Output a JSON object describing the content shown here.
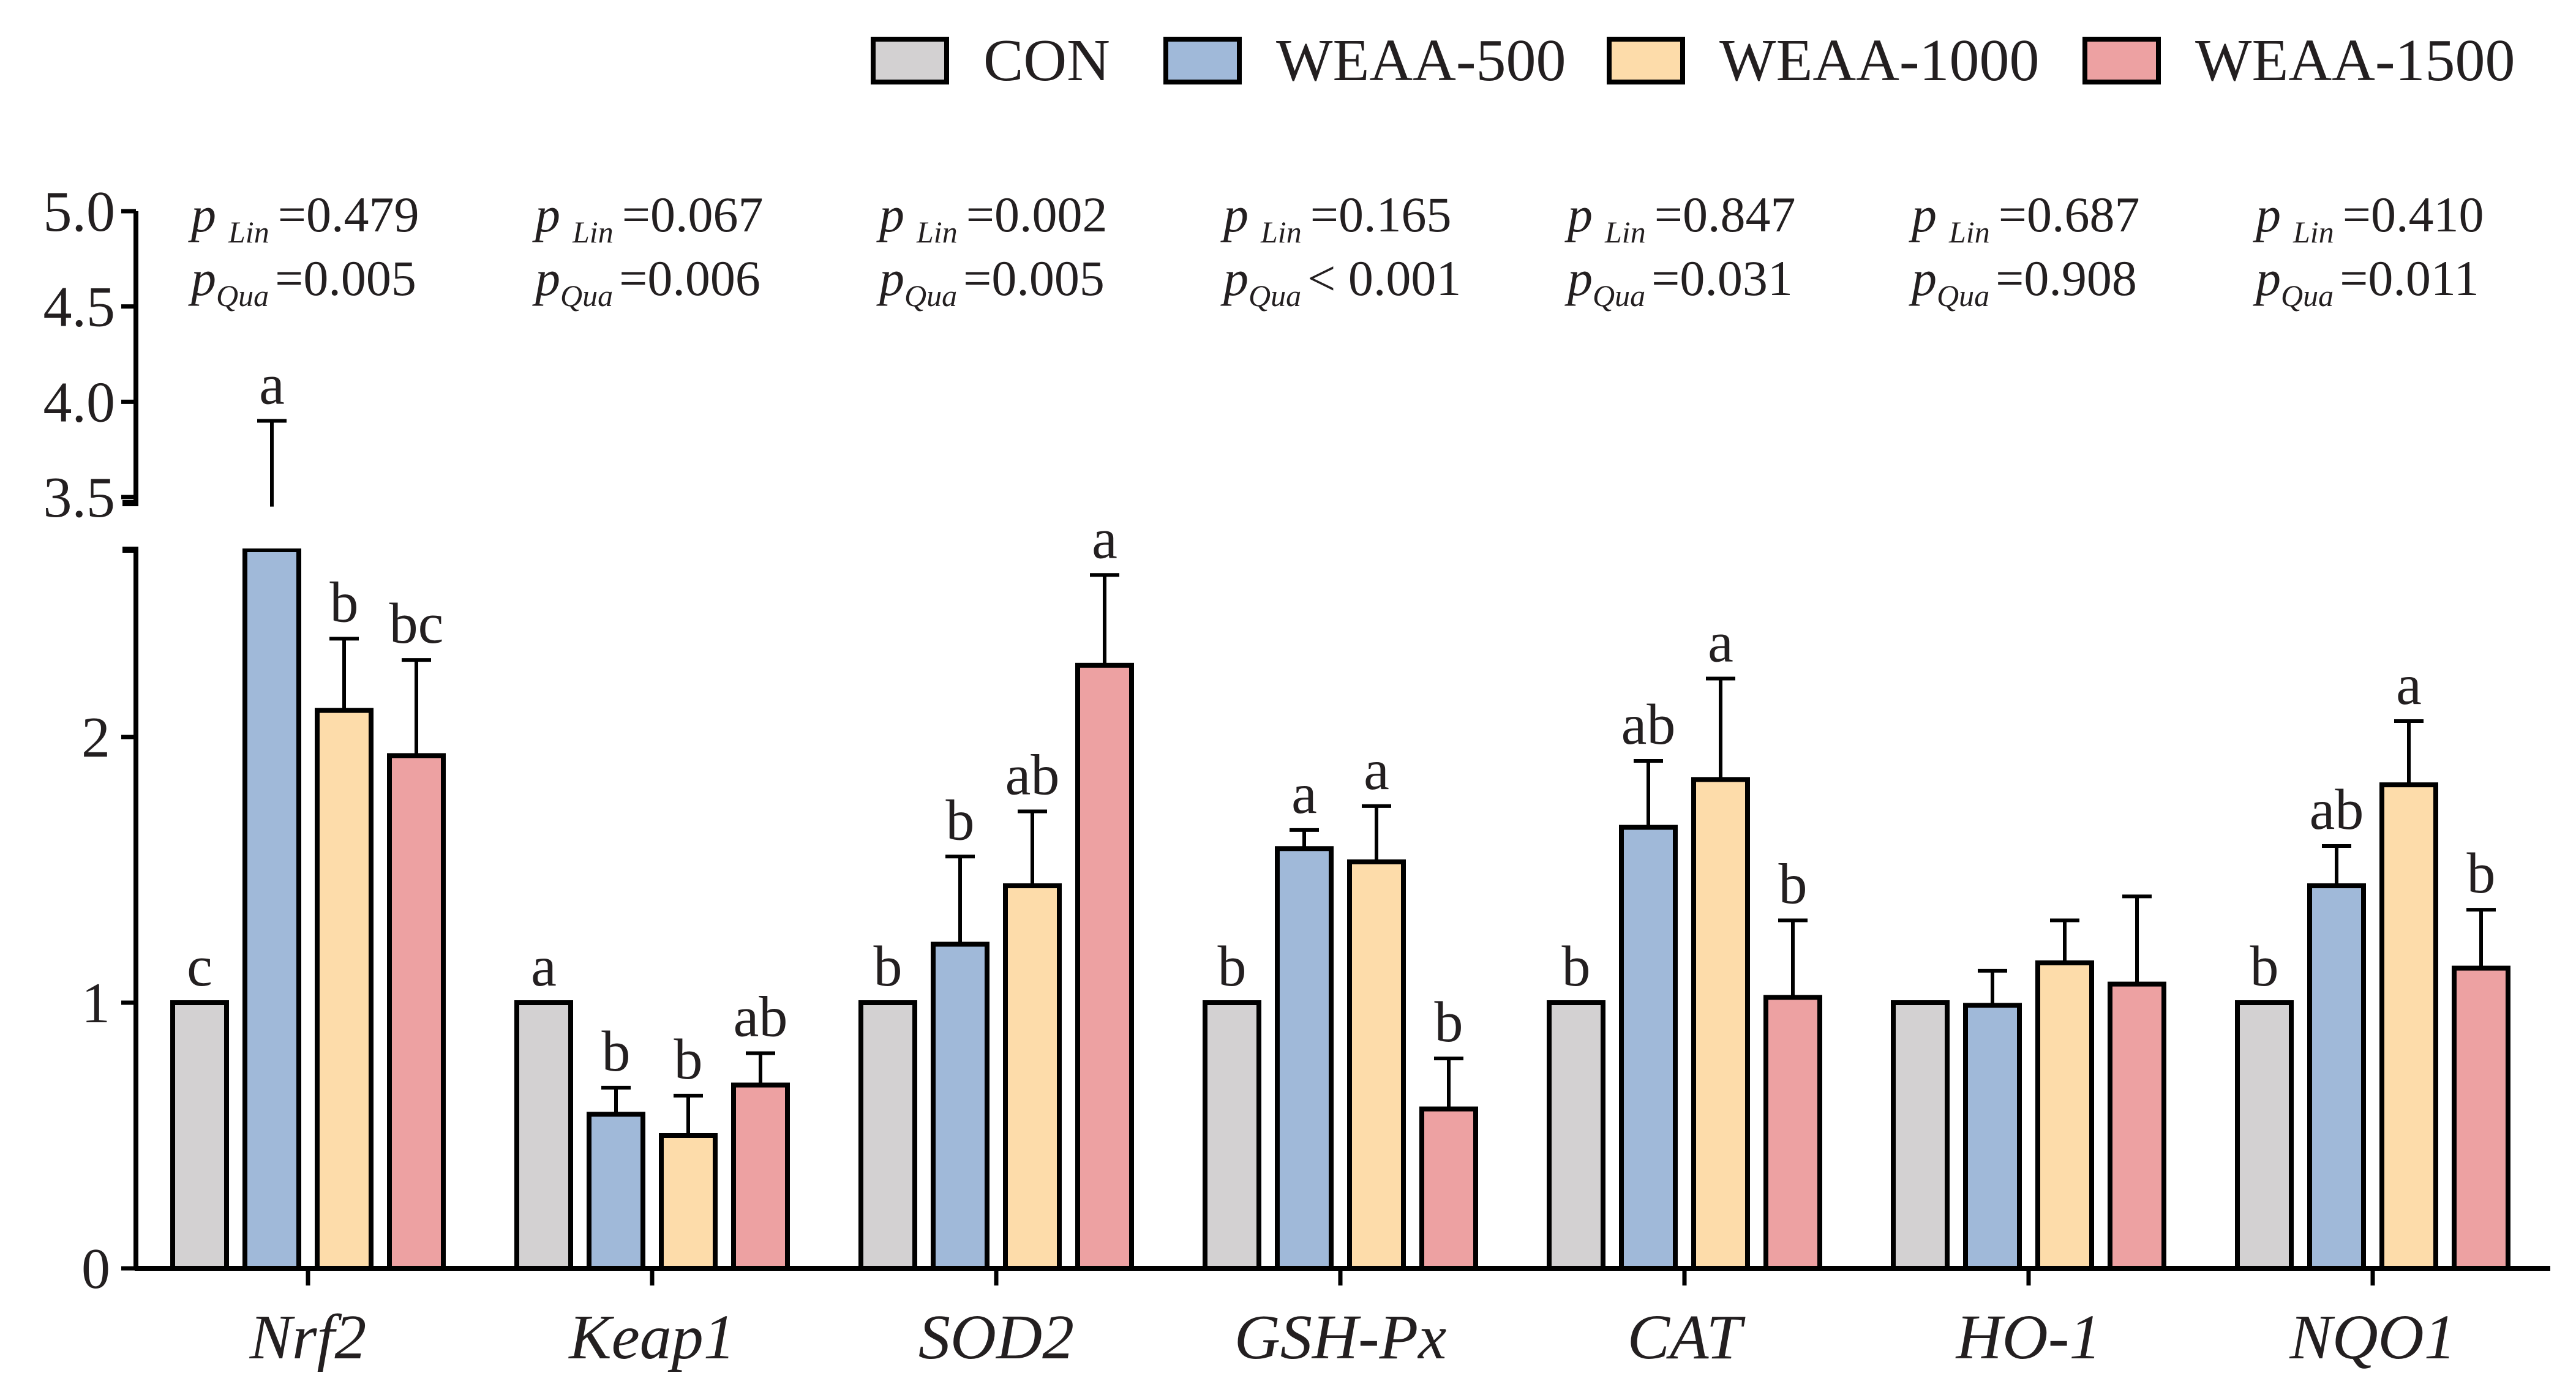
{
  "chart_data": {
    "type": "bar",
    "title": "",
    "xlabel": "",
    "ylabel": "",
    "ylim": [
      0,
      5.0
    ],
    "axis_break": {
      "lower_max": 2.7,
      "upper_min": 3.4,
      "upper_max": 5.0
    },
    "y_ticks_lower": [
      "0",
      "1",
      "2"
    ],
    "y_ticks_upper": [
      "3.5",
      "4.0",
      "4.5",
      "5.0"
    ],
    "categories": [
      "Nrf2",
      "Keap1",
      "SOD2",
      "GSH-Px",
      "CAT",
      "HO-1",
      "NQO1"
    ],
    "series": [
      {
        "name": "CON",
        "color": "#d3d1d2",
        "values": [
          1.0,
          1.0,
          1.0,
          1.0,
          1.0,
          1.0,
          1.0
        ],
        "errors": [
          0,
          0,
          0,
          0,
          0,
          0,
          0
        ],
        "letters": [
          "c",
          "a",
          "b",
          "b",
          "b",
          "",
          "b"
        ]
      },
      {
        "name": "WEAA-500",
        "color": "#a0b9d9",
        "values": [
          3.45,
          0.58,
          1.22,
          1.58,
          1.66,
          0.99,
          1.44
        ],
        "errors": [
          0.45,
          0.1,
          0.33,
          0.07,
          0.25,
          0.13,
          0.15
        ],
        "letters": [
          "a",
          "b",
          "b",
          "a",
          "ab",
          "",
          "ab"
        ]
      },
      {
        "name": "WEAA-1000",
        "color": "#fddcaa",
        "values": [
          2.1,
          0.5,
          1.44,
          1.53,
          1.84,
          1.15,
          1.82
        ],
        "errors": [
          0.27,
          0.15,
          0.28,
          0.21,
          0.38,
          0.16,
          0.24
        ],
        "letters": [
          "b",
          "b",
          "ab",
          "a",
          "a",
          "",
          "a"
        ]
      },
      {
        "name": "WEAA-1500",
        "color": "#eda1a2",
        "values": [
          1.93,
          0.69,
          2.27,
          0.6,
          1.02,
          1.07,
          1.13
        ],
        "errors": [
          0.36,
          0.12,
          0.34,
          0.19,
          0.29,
          0.33,
          0.22
        ],
        "letters": [
          "bc",
          "ab",
          "a",
          "b",
          "b",
          "",
          "b"
        ]
      }
    ],
    "p_values": [
      {
        "lin": "=0.479",
        "qua": "=0.005"
      },
      {
        "lin": "=0.067",
        "qua": "=0.006"
      },
      {
        "lin": "=0.002",
        "qua": "=0.005"
      },
      {
        "lin": "=0.165",
        "qua": "< 0.001"
      },
      {
        "lin": "=0.847",
        "qua": "=0.031"
      },
      {
        "lin": "=0.687",
        "qua": "=0.908"
      },
      {
        "lin": "=0.410",
        "qua": "=0.011"
      }
    ],
    "p_labels": {
      "p": "p",
      "lin": "Lin",
      "qua": "Qua"
    },
    "legend_position": "top-right"
  }
}
